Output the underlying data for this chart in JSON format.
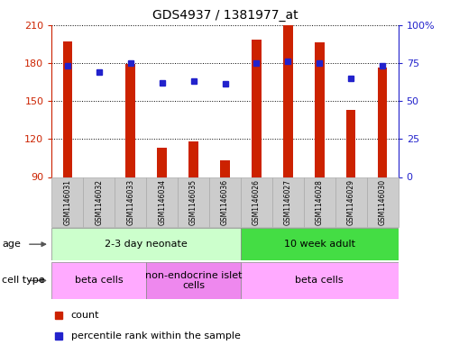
{
  "title": "GDS4937 / 1381977_at",
  "samples": [
    "GSM1146031",
    "GSM1146032",
    "GSM1146033",
    "GSM1146034",
    "GSM1146035",
    "GSM1146036",
    "GSM1146026",
    "GSM1146027",
    "GSM1146028",
    "GSM1146029",
    "GSM1146030"
  ],
  "bar_values": [
    197,
    90,
    179,
    113,
    118,
    103,
    198,
    210,
    196,
    143,
    176
  ],
  "percentile_values": [
    73,
    69,
    75,
    62,
    63,
    61,
    75,
    76,
    75,
    65,
    73
  ],
  "ylim_left": [
    90,
    210
  ],
  "ylim_right": [
    0,
    100
  ],
  "yticks_left": [
    90,
    120,
    150,
    180,
    210
  ],
  "yticks_right": [
    0,
    25,
    50,
    75,
    100
  ],
  "bar_color": "#cc2200",
  "dot_color": "#2222cc",
  "age_groups": [
    {
      "label": "2-3 day neonate",
      "start": 0,
      "end": 6,
      "color": "#ccffcc"
    },
    {
      "label": "10 week adult",
      "start": 6,
      "end": 11,
      "color": "#44dd44"
    }
  ],
  "cell_type_groups": [
    {
      "label": "beta cells",
      "start": 0,
      "end": 3,
      "color": "#ffaaff"
    },
    {
      "label": "non-endocrine islet\ncells",
      "start": 3,
      "end": 6,
      "color": "#ee88ee"
    },
    {
      "label": "beta cells",
      "start": 6,
      "end": 11,
      "color": "#ffaaff"
    }
  ],
  "legend_items": [
    {
      "label": "count",
      "color": "#cc2200"
    },
    {
      "label": "percentile rank within the sample",
      "color": "#2222cc"
    }
  ],
  "age_label": "age",
  "cell_type_label": "cell type",
  "background_color": "#ffffff",
  "tick_color_left": "#cc2200",
  "tick_color_right": "#2222cc",
  "sample_box_color": "#cccccc",
  "sample_box_edge": "#aaaaaa"
}
